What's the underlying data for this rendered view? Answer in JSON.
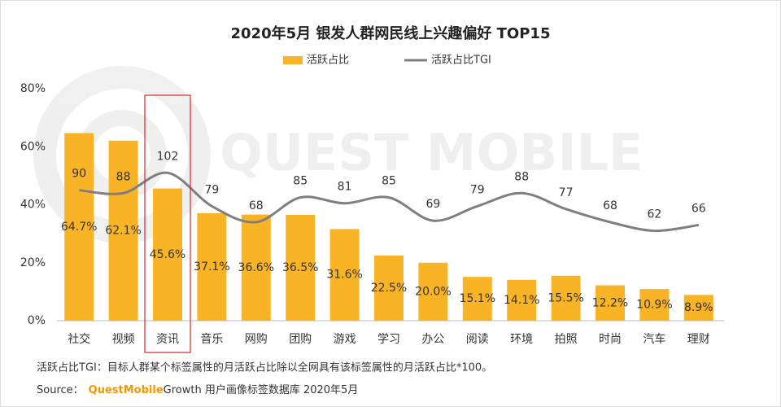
{
  "chart_data": {
    "type": "bar_line",
    "title": "2020年5月 银发人群网民线上兴趣偏好 TOP15",
    "watermark": "QUEST MOBILE",
    "categories": [
      "社交",
      "视频",
      "资讯",
      "音乐",
      "网购",
      "团购",
      "游戏",
      "学习",
      "办公",
      "阅读",
      "环境",
      "拍照",
      "时尚",
      "汽车",
      "理财"
    ],
    "series": [
      {
        "name": "活跃占比",
        "type": "bar",
        "color": "#f8b425",
        "values": [
          64.7,
          62.1,
          45.6,
          37.1,
          36.6,
          36.5,
          31.6,
          22.5,
          20.0,
          15.1,
          14.1,
          15.5,
          12.2,
          10.9,
          8.9
        ],
        "value_labels": [
          "64.7%",
          "62.1%",
          "45.6%",
          "37.1%",
          "36.6%",
          "36.5%",
          "31.6%",
          "22.5%",
          "20.0%",
          "15.1%",
          "14.1%",
          "15.5%",
          "12.2%",
          "10.9%",
          "8.9%"
        ]
      },
      {
        "name": "活跃占比TGI",
        "type": "line",
        "color": "#7f7f7f",
        "axis": "y2",
        "values": [
          90,
          88,
          102,
          79,
          68,
          85,
          81,
          85,
          69,
          79,
          88,
          77,
          68,
          62,
          66
        ]
      }
    ],
    "ylim": [
      0,
      80
    ],
    "yticks": [
      {
        "value": 0,
        "label": "0%"
      },
      {
        "value": 20,
        "label": "20%"
      },
      {
        "value": 40,
        "label": "40%"
      },
      {
        "value": 60,
        "label": "60%"
      },
      {
        "value": 80,
        "label": "80%"
      }
    ],
    "y2lim": [
      0,
      160
    ],
    "highlight": 2,
    "legend": "top",
    "footnote": "活跃占比TGI：目标人群某个标签属性的月活跃占比除以全网具有该标签属性的月活跃占比*100。",
    "source": {
      "prefix": "Source：",
      "brand": "QuestMobile",
      "text": "Growth 用户画像标签数据库 2020年5月"
    }
  }
}
